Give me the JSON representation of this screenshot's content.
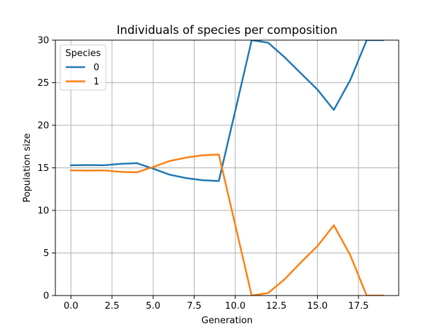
{
  "chart_data": {
    "type": "line",
    "title": "Individuals of species per composition",
    "xlabel": "Generation",
    "ylabel": "Population size",
    "xlim": [
      -0.95,
      19.95
    ],
    "ylim": [
      0,
      30
    ],
    "xticks": [
      0,
      2.5,
      5,
      7.5,
      10,
      12.5,
      15,
      17.5
    ],
    "xtick_labels": [
      "0.0",
      "2.5",
      "5.0",
      "7.5",
      "10.0",
      "12.5",
      "15.0",
      "17.5"
    ],
    "yticks": [
      0,
      5,
      10,
      15,
      20,
      25,
      30
    ],
    "ytick_labels": [
      "0",
      "5",
      "10",
      "15",
      "20",
      "25",
      "30"
    ],
    "grid": true,
    "legend": {
      "title": "Species",
      "position": "top-left"
    },
    "x": [
      0,
      1,
      2,
      3,
      4,
      5,
      6,
      7,
      8,
      9,
      10,
      11,
      12,
      13,
      14,
      15,
      16,
      17,
      18,
      19
    ],
    "series": [
      {
        "name": "0",
        "color": "#1f77b4",
        "values": [
          15.3,
          15.33,
          15.3,
          15.47,
          15.55,
          14.9,
          14.2,
          13.8,
          13.55,
          13.45,
          21.7,
          30.0,
          29.7,
          28.0,
          26.1,
          24.2,
          21.8,
          25.3,
          30.0,
          30.0
        ]
      },
      {
        "name": "1",
        "color": "#ff7f0e",
        "values": [
          14.7,
          14.67,
          14.7,
          14.53,
          14.47,
          15.1,
          15.8,
          16.2,
          16.47,
          16.57,
          8.3,
          0.0,
          0.3,
          1.9,
          3.9,
          5.8,
          8.25,
          4.75,
          0.0,
          0.0
        ]
      }
    ]
  }
}
